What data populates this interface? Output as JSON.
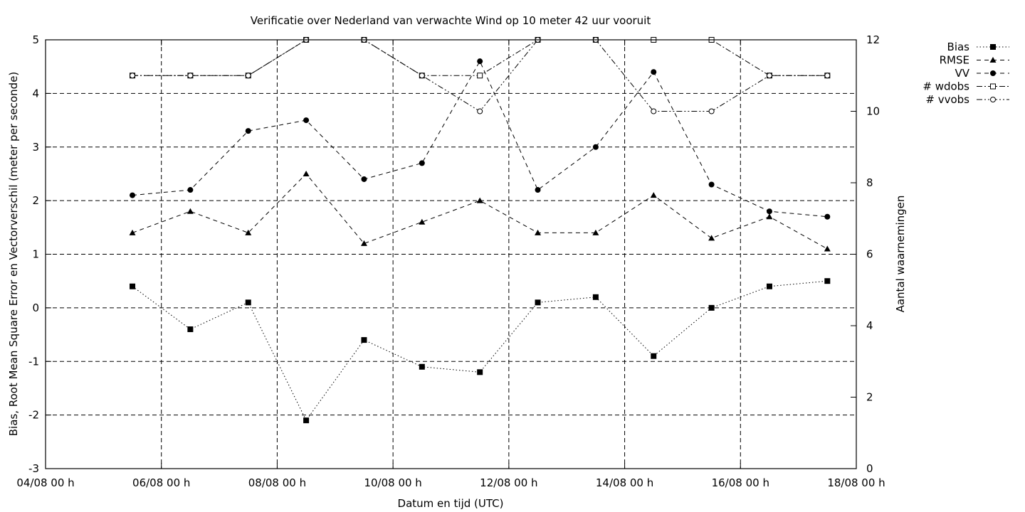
{
  "chart_data": {
    "type": "line",
    "title": "Verificatie over Nederland van verwachte Wind op 10 meter 42 uur vooruit",
    "xlabel": "Datum en tijd (UTC)",
    "ylabel": "Bias, Root Mean Square Error en Vectorverschil (meter per seconde)",
    "y2label": "Aantal waarnemingen",
    "x_tick_labels": [
      "04/08 00 h",
      "06/08 00 h",
      "08/08 00 h",
      "10/08 00 h",
      "12/08 00 h",
      "14/08 00 h",
      "16/08 00 h",
      "18/08 00 h"
    ],
    "y_tick_labels": [
      "-3",
      "-2",
      "-1",
      "0",
      "1",
      "2",
      "3",
      "4",
      "5"
    ],
    "y2_tick_labels": [
      "0",
      "2",
      "4",
      "6",
      "8",
      "10",
      "12"
    ],
    "x_range_days": [
      4,
      18
    ],
    "ylim": [
      -3,
      5
    ],
    "y2lim": [
      0,
      12
    ],
    "grid": true,
    "legend_position": "outside top-right",
    "x": [
      5.5,
      6.5,
      7.5,
      8.5,
      9.5,
      10.5,
      11.5,
      12.5,
      13.5,
      14.5,
      15.5,
      16.5,
      17.5
    ],
    "series": [
      {
        "name": "Bias",
        "axis": "left",
        "marker": "filled-square",
        "dash": "dotted",
        "values": [
          0.4,
          -0.4,
          0.1,
          -2.1,
          -0.6,
          -1.1,
          -1.2,
          0.1,
          0.2,
          -0.9,
          0.0,
          0.4,
          0.5
        ]
      },
      {
        "name": "RMSE",
        "axis": "left",
        "marker": "filled-triangle",
        "dash": "dashed",
        "values": [
          1.4,
          1.8,
          1.4,
          2.5,
          1.2,
          1.6,
          2.0,
          1.4,
          1.4,
          2.1,
          1.3,
          1.7,
          1.1
        ]
      },
      {
        "name": "VV",
        "axis": "left",
        "marker": "filled-circle",
        "dash": "dashed",
        "values": [
          2.1,
          2.2,
          3.3,
          3.5,
          2.4,
          2.7,
          4.6,
          2.2,
          3.0,
          4.4,
          2.3,
          1.8,
          1.7
        ]
      },
      {
        "name": "# wdobs",
        "axis": "right",
        "marker": "open-square",
        "dash": "dash-dot",
        "values": [
          11,
          11,
          11,
          12,
          12,
          11,
          11,
          12,
          12,
          12,
          12,
          11,
          11
        ]
      },
      {
        "name": "# vvobs",
        "axis": "right",
        "marker": "open-circle",
        "dash": "dash-dot-dot",
        "values": [
          11,
          11,
          11,
          12,
          12,
          11,
          10,
          12,
          12,
          10,
          10,
          11,
          11
        ]
      }
    ]
  }
}
